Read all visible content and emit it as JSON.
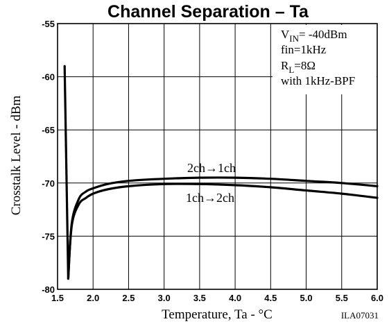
{
  "chart_data": {
    "type": "line",
    "title": "Channel Separation  –  Ta",
    "xlabel": "Temperature,  Ta  -  °C",
    "ylabel": "Crosstalk Level  -  dBm",
    "xlim": [
      1.5,
      6.0
    ],
    "ylim": [
      -80,
      -55
    ],
    "x_ticks": [
      "1.5",
      "2.0",
      "2.5",
      "3.0",
      "3.5",
      "4.0",
      "4.5",
      "5.0",
      "5.5",
      "6.0"
    ],
    "y_ticks": [
      "-55",
      "-60",
      "-65",
      "-70",
      "-75",
      "-80"
    ],
    "grid": true,
    "conditions": {
      "vin": {
        "main": "V",
        "sub": "IN",
        "rest": "= -40dBm"
      },
      "fin": "fin=1kHz",
      "rl": {
        "main": "R",
        "sub": "L",
        "rest": "=8Ω"
      },
      "bpf": "with 1kHz-BPF"
    },
    "series": [
      {
        "name": "2ch→1ch",
        "x": [
          1.6,
          1.65,
          1.7,
          1.8,
          1.9,
          2.0,
          2.2,
          2.5,
          3.0,
          3.5,
          4.0,
          4.5,
          5.0,
          5.5,
          6.0
        ],
        "y": [
          -59.0,
          -79.0,
          -73.8,
          -71.5,
          -70.8,
          -70.5,
          -70.1,
          -69.8,
          -69.6,
          -69.5,
          -69.5,
          -69.6,
          -69.8,
          -70.0,
          -70.3
        ]
      },
      {
        "name": "1ch→2ch",
        "x": [
          1.65,
          1.7,
          1.8,
          1.9,
          2.0,
          2.2,
          2.5,
          3.0,
          3.5,
          4.0,
          4.5,
          5.0,
          5.5,
          6.0
        ],
        "y": [
          -79.0,
          -74.0,
          -72.0,
          -71.4,
          -71.0,
          -70.6,
          -70.3,
          -70.1,
          -70.1,
          -70.2,
          -70.4,
          -70.7,
          -71.0,
          -71.4
        ]
      }
    ],
    "annotations": [
      "2ch→1ch",
      "1ch→2ch"
    ],
    "figure_code": "ILA07031"
  }
}
